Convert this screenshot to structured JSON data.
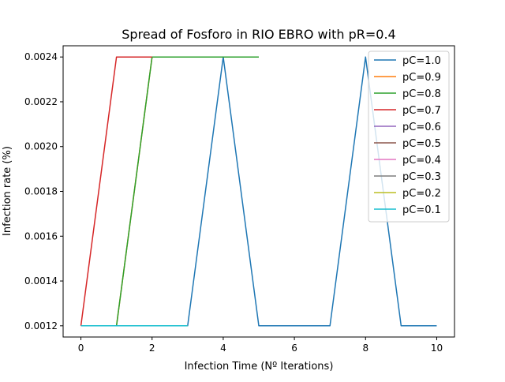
{
  "chart_data": {
    "type": "line",
    "title": "Spread of Fosforo in RIO EBRO with pR=0.4",
    "xlabel": "Infection Time (Nº Iterations)",
    "ylabel": "Infection rate (%)",
    "xlim": [
      -0.5,
      10.5
    ],
    "ylim": [
      0.00115,
      0.00245
    ],
    "xticks": [
      0,
      2,
      4,
      6,
      8,
      10
    ],
    "xtick_labels": [
      "0",
      "2",
      "4",
      "6",
      "8",
      "10"
    ],
    "yticks": [
      0.0012,
      0.0014,
      0.0016,
      0.0018,
      0.002,
      0.0022,
      0.0024
    ],
    "ytick_labels": [
      "0.0012",
      "0.0014",
      "0.0016",
      "0.0018",
      "0.0020",
      "0.0022",
      "0.0024"
    ],
    "grid": false,
    "legend_position": "top-right",
    "series": [
      {
        "name": "pC=1.0",
        "color": "#1f77b4",
        "x": [
          0,
          1,
          2,
          3,
          4,
          5,
          6,
          7,
          8,
          9,
          10
        ],
        "y": [
          0.0012,
          0.0012,
          0.0012,
          0.0012,
          0.0024,
          0.0012,
          0.0012,
          0.0012,
          0.0024,
          0.0012,
          0.0012
        ]
      },
      {
        "name": "pC=0.9",
        "color": "#ff7f0e",
        "x": [
          0,
          1,
          2,
          3,
          4,
          5
        ],
        "y": [
          0.0012,
          0.0012,
          0.0024,
          0.0024,
          0.0024,
          0.0024
        ]
      },
      {
        "name": "pC=0.8",
        "color": "#2ca02c",
        "x": [
          0,
          1,
          2,
          3,
          4,
          5
        ],
        "y": [
          0.0012,
          0.0012,
          0.0024,
          0.0024,
          0.0024,
          0.0024
        ]
      },
      {
        "name": "pC=0.7",
        "color": "#d62728",
        "x": [
          0,
          1,
          2
        ],
        "y": [
          0.0012,
          0.0024,
          0.0024
        ]
      },
      {
        "name": "pC=0.6",
        "color": "#9467bd",
        "x": [
          0,
          1,
          2,
          3
        ],
        "y": [
          0.0012,
          0.0012,
          0.0012,
          0.0012
        ]
      },
      {
        "name": "pC=0.5",
        "color": "#8c564b",
        "x": [
          0,
          1,
          2,
          3
        ],
        "y": [
          0.0012,
          0.0012,
          0.0012,
          0.0012
        ]
      },
      {
        "name": "pC=0.4",
        "color": "#e377c2",
        "x": [
          0,
          1,
          2,
          3
        ],
        "y": [
          0.0012,
          0.0012,
          0.0012,
          0.0012
        ]
      },
      {
        "name": "pC=0.3",
        "color": "#7f7f7f",
        "x": [
          0,
          1,
          2,
          3
        ],
        "y": [
          0.0012,
          0.0012,
          0.0012,
          0.0012
        ]
      },
      {
        "name": "pC=0.2",
        "color": "#bcbd22",
        "x": [
          0,
          1,
          2,
          3
        ],
        "y": [
          0.0012,
          0.0012,
          0.0012,
          0.0012
        ]
      },
      {
        "name": "pC=0.1",
        "color": "#17becf",
        "x": [
          0,
          1,
          2,
          3
        ],
        "y": [
          0.0012,
          0.0012,
          0.0012,
          0.0012
        ]
      }
    ]
  }
}
